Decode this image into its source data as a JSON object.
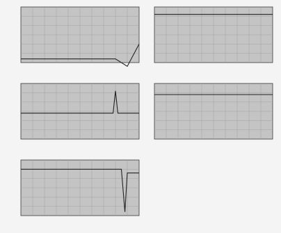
{
  "chart_data": [
    {
      "type": "line",
      "x": [
        0,
        10,
        20,
        30,
        40,
        50,
        60,
        70,
        80,
        90,
        100
      ],
      "series": [
        {
          "values": [
            -18,
            -18,
            -18,
            -18,
            -18,
            -18,
            -18,
            -18,
            -18,
            -22,
            -10
          ]
        }
      ],
      "xlim": [
        0,
        100
      ],
      "ylim": [
        -20,
        10
      ],
      "grid": true
    },
    {
      "type": "line",
      "x": [
        0,
        10,
        20,
        30,
        40,
        50,
        60,
        70,
        80,
        90,
        100
      ],
      "series": [
        {
          "values": [
            6,
            6,
            6,
            6,
            6,
            6,
            6,
            6,
            6,
            6,
            6
          ]
        }
      ],
      "xlim": [
        0,
        100
      ],
      "ylim": [
        -20,
        10
      ],
      "grid": true
    },
    {
      "type": "line",
      "x": [
        0,
        10,
        20,
        30,
        40,
        50,
        60,
        70,
        78,
        80,
        82,
        90,
        100
      ],
      "series": [
        {
          "values": [
            -6,
            -6,
            -6,
            -6,
            -6,
            -6,
            -6,
            -6,
            -6,
            6,
            -6,
            -6,
            -6
          ]
        }
      ],
      "xlim": [
        0,
        100
      ],
      "ylim": [
        -20,
        10
      ],
      "grid": true
    },
    {
      "type": "line",
      "x": [
        0,
        10,
        20,
        30,
        40,
        50,
        60,
        70,
        80,
        90,
        100
      ],
      "series": [
        {
          "values": [
            4,
            4,
            4,
            4,
            4,
            4,
            4,
            4,
            4,
            4,
            4
          ]
        }
      ],
      "xlim": [
        0,
        100
      ],
      "ylim": [
        -20,
        10
      ],
      "grid": true
    },
    {
      "type": "line",
      "x": [
        0,
        10,
        20,
        30,
        40,
        50,
        60,
        70,
        80,
        85,
        88,
        90,
        100
      ],
      "series": [
        {
          "values": [
            5,
            5,
            5,
            5,
            5,
            5,
            5,
            5,
            5,
            5,
            -18,
            3,
            3
          ]
        }
      ],
      "xlim": [
        0,
        100
      ],
      "ylim": [
        -20,
        10
      ],
      "grid": true
    }
  ]
}
